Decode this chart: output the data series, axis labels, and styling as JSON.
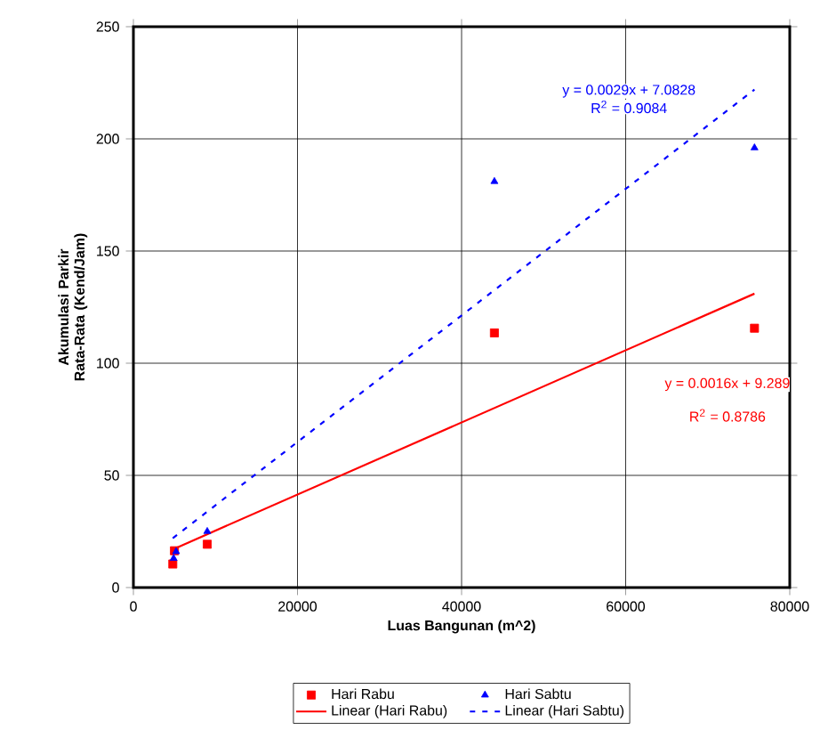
{
  "chart_data": {
    "type": "scatter",
    "xlabel": "Luas Bangunan (m^2)",
    "ylabel": "Akumulasi Parkir Rata-Rata (Kend/Jam)",
    "xlim": [
      0,
      80000
    ],
    "ylim": [
      0,
      250
    ],
    "xticks": [
      0,
      20000,
      40000,
      60000,
      80000
    ],
    "yticks": [
      0,
      50,
      100,
      150,
      200,
      250
    ],
    "grid": true,
    "legend": "bottom",
    "series": [
      {
        "name": "Hari Rabu",
        "color": "#ff0000",
        "marker": "square",
        "x": [
          4800,
          5000,
          9000,
          44000,
          75700
        ],
        "values": [
          10.5,
          16.4,
          19.3,
          113.5,
          115.6
        ]
      },
      {
        "name": "Hari Sabtu",
        "color": "#0000ff",
        "marker": "triangle",
        "x": [
          4900,
          5200,
          9000,
          44000,
          75700
        ],
        "values": [
          13,
          16,
          25,
          181,
          196
        ]
      },
      {
        "name": "Linear (Hari Rabu)",
        "type": "line",
        "color": "#ff0000",
        "line_style": "solid",
        "marker": "none",
        "x": [
          4800,
          75700
        ],
        "values": [
          17,
          131
        ]
      },
      {
        "name": "Linear (Hari Sabtu)",
        "type": "line",
        "color": "#0000ff",
        "line_style": "dashed",
        "marker": "none",
        "x": [
          4800,
          75700
        ],
        "values": [
          22,
          222
        ]
      }
    ],
    "annotations": [
      "y = 0.0029x + 7.0828",
      "R$^{2}$ = 0.9084",
      "y = 0.0016x + 9.289",
      "R$^{2}$ = 0.8786"
    ]
  }
}
